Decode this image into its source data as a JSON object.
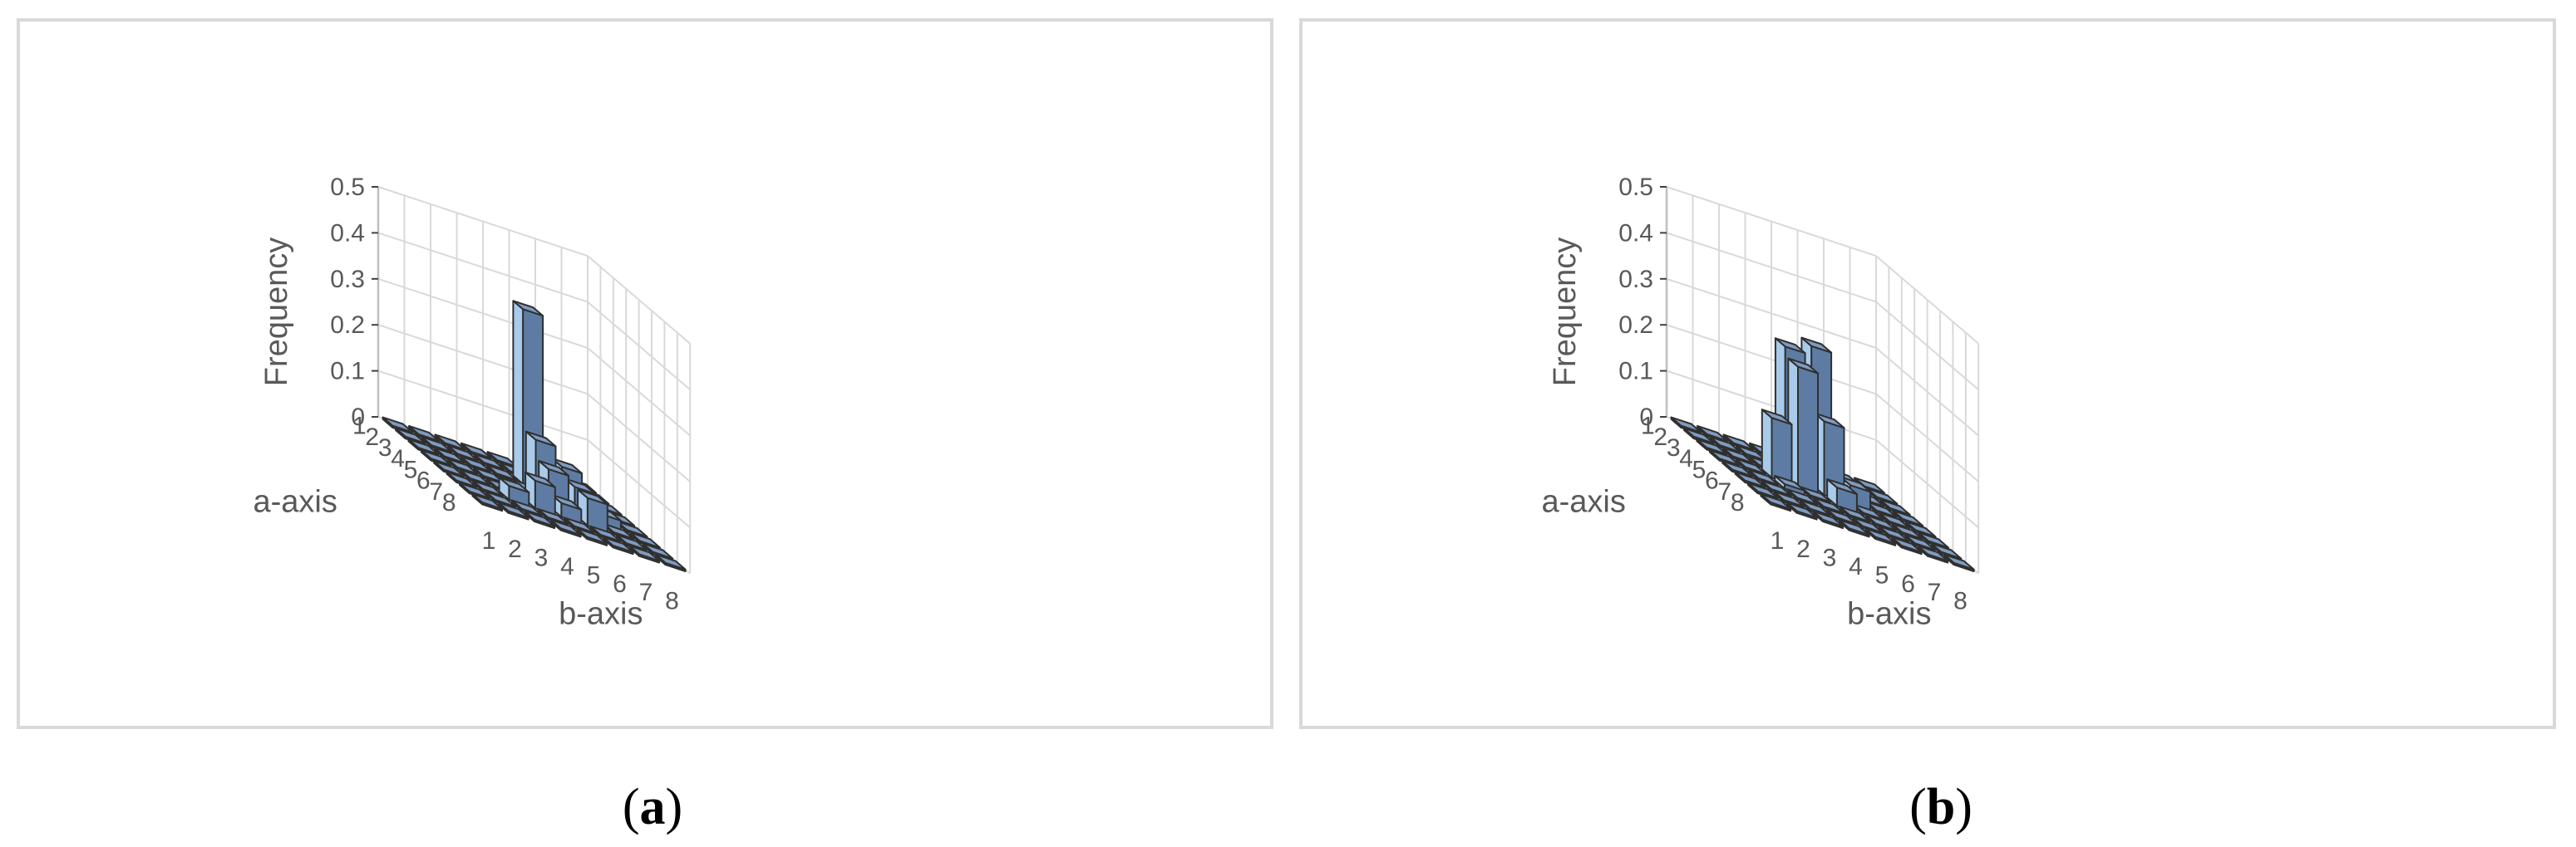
{
  "chart_data": [
    {
      "type": "bar",
      "subtype": "3d-bar",
      "panel_label": "a",
      "x_name": "b-axis",
      "y_name": "a-axis",
      "zlabel": "Frequency",
      "x_categories": [
        "1",
        "2",
        "3",
        "4",
        "5",
        "6",
        "7",
        "8"
      ],
      "y_categories": [
        "1",
        "2",
        "3",
        "4",
        "5",
        "6",
        "7",
        "8"
      ],
      "zlim": [
        0,
        0.5
      ],
      "z_ticks": [
        "0",
        "0.1",
        "0.2",
        "0.3",
        "0.4",
        "0.5"
      ],
      "grid": true,
      "values": [
        [
          0,
          0,
          0,
          0,
          0,
          0,
          0,
          0
        ],
        [
          0,
          0,
          0,
          0,
          0,
          0,
          0,
          0
        ],
        [
          0,
          0,
          0,
          0,
          0.38,
          0,
          0,
          0
        ],
        [
          0,
          0,
          0,
          0,
          0.12,
          0.08,
          0,
          0
        ],
        [
          0,
          0,
          0,
          0.02,
          0.08,
          0.06,
          0.02,
          0
        ],
        [
          0,
          0,
          0.03,
          0.06,
          0.03,
          0.06,
          0,
          0
        ],
        [
          0,
          0,
          0,
          0,
          0,
          0,
          0,
          0
        ],
        [
          0,
          0,
          0,
          0,
          0,
          0,
          0,
          0
        ]
      ]
    },
    {
      "type": "bar",
      "subtype": "3d-bar",
      "panel_label": "b",
      "x_name": "b-axis",
      "y_name": "a-axis",
      "zlabel": "Frequency",
      "x_categories": [
        "1",
        "2",
        "3",
        "4",
        "5",
        "6",
        "7",
        "8"
      ],
      "y_categories": [
        "1",
        "2",
        "3",
        "4",
        "5",
        "6",
        "7",
        "8"
      ],
      "zlim": [
        0,
        0.5
      ],
      "z_ticks": [
        "0",
        "0.1",
        "0.2",
        "0.3",
        "0.4",
        "0.5"
      ],
      "grid": true,
      "values": [
        [
          0,
          0,
          0,
          0,
          0,
          0,
          0,
          0
        ],
        [
          0,
          0,
          0,
          0,
          0,
          0,
          0,
          0
        ],
        [
          0,
          0,
          0,
          0.28,
          0.3,
          0,
          0,
          0
        ],
        [
          0,
          0,
          0.13,
          0.26,
          0.16,
          0.04,
          0,
          0
        ],
        [
          0,
          0,
          0.01,
          0,
          0.04,
          0,
          0,
          0
        ],
        [
          0,
          0,
          0,
          0,
          0,
          0,
          0,
          0
        ],
        [
          0,
          0,
          0,
          0,
          0,
          0,
          0,
          0
        ],
        [
          0,
          0,
          0,
          0,
          0,
          0,
          0,
          0
        ]
      ]
    }
  ],
  "colors": {
    "bar_top": "#7f9bc0",
    "bar_left_face": "#a9cbeb",
    "bar_right_face": "#5e7ca3",
    "edge": "#2f2f2f"
  }
}
